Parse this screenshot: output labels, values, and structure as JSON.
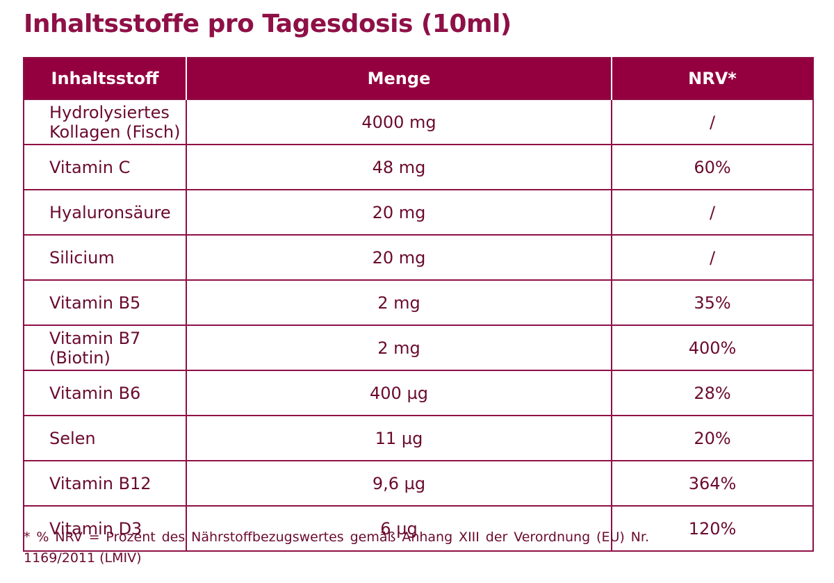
{
  "title": "Inhaltsstoffe pro Tagesdosis (10ml)",
  "table": {
    "header": [
      "Inhaltsstoff",
      "Menge",
      "NRV*"
    ],
    "rows": [
      [
        "Hydrolysiertes Kollagen (Fisch)",
        "4000 mg",
        "/"
      ],
      [
        "Vitamin C",
        "48 mg",
        "60%"
      ],
      [
        "Hyaluronsäure",
        "20 mg",
        "/"
      ],
      [
        "Silicium",
        "20 mg",
        "/"
      ],
      [
        "Vitamin B5",
        "2 mg",
        "35%"
      ],
      [
        "Vitamin B7 (Biotin)",
        "2 mg",
        "400%"
      ],
      [
        "Vitamin B6",
        "400 µg",
        "28%"
      ],
      [
        "Selen",
        "11 µg",
        "20%"
      ],
      [
        "Vitamin B12",
        "9,6 µg",
        "364%"
      ],
      [
        "Vitamin D3",
        "6 µg",
        "120%"
      ]
    ]
  },
  "footnote": "* % NRV = Prozent des Nährstoffbezugswertes gemäß Anhang XIII der Verordnung (EU) Nr. 1169/2011 (LMIV)"
}
